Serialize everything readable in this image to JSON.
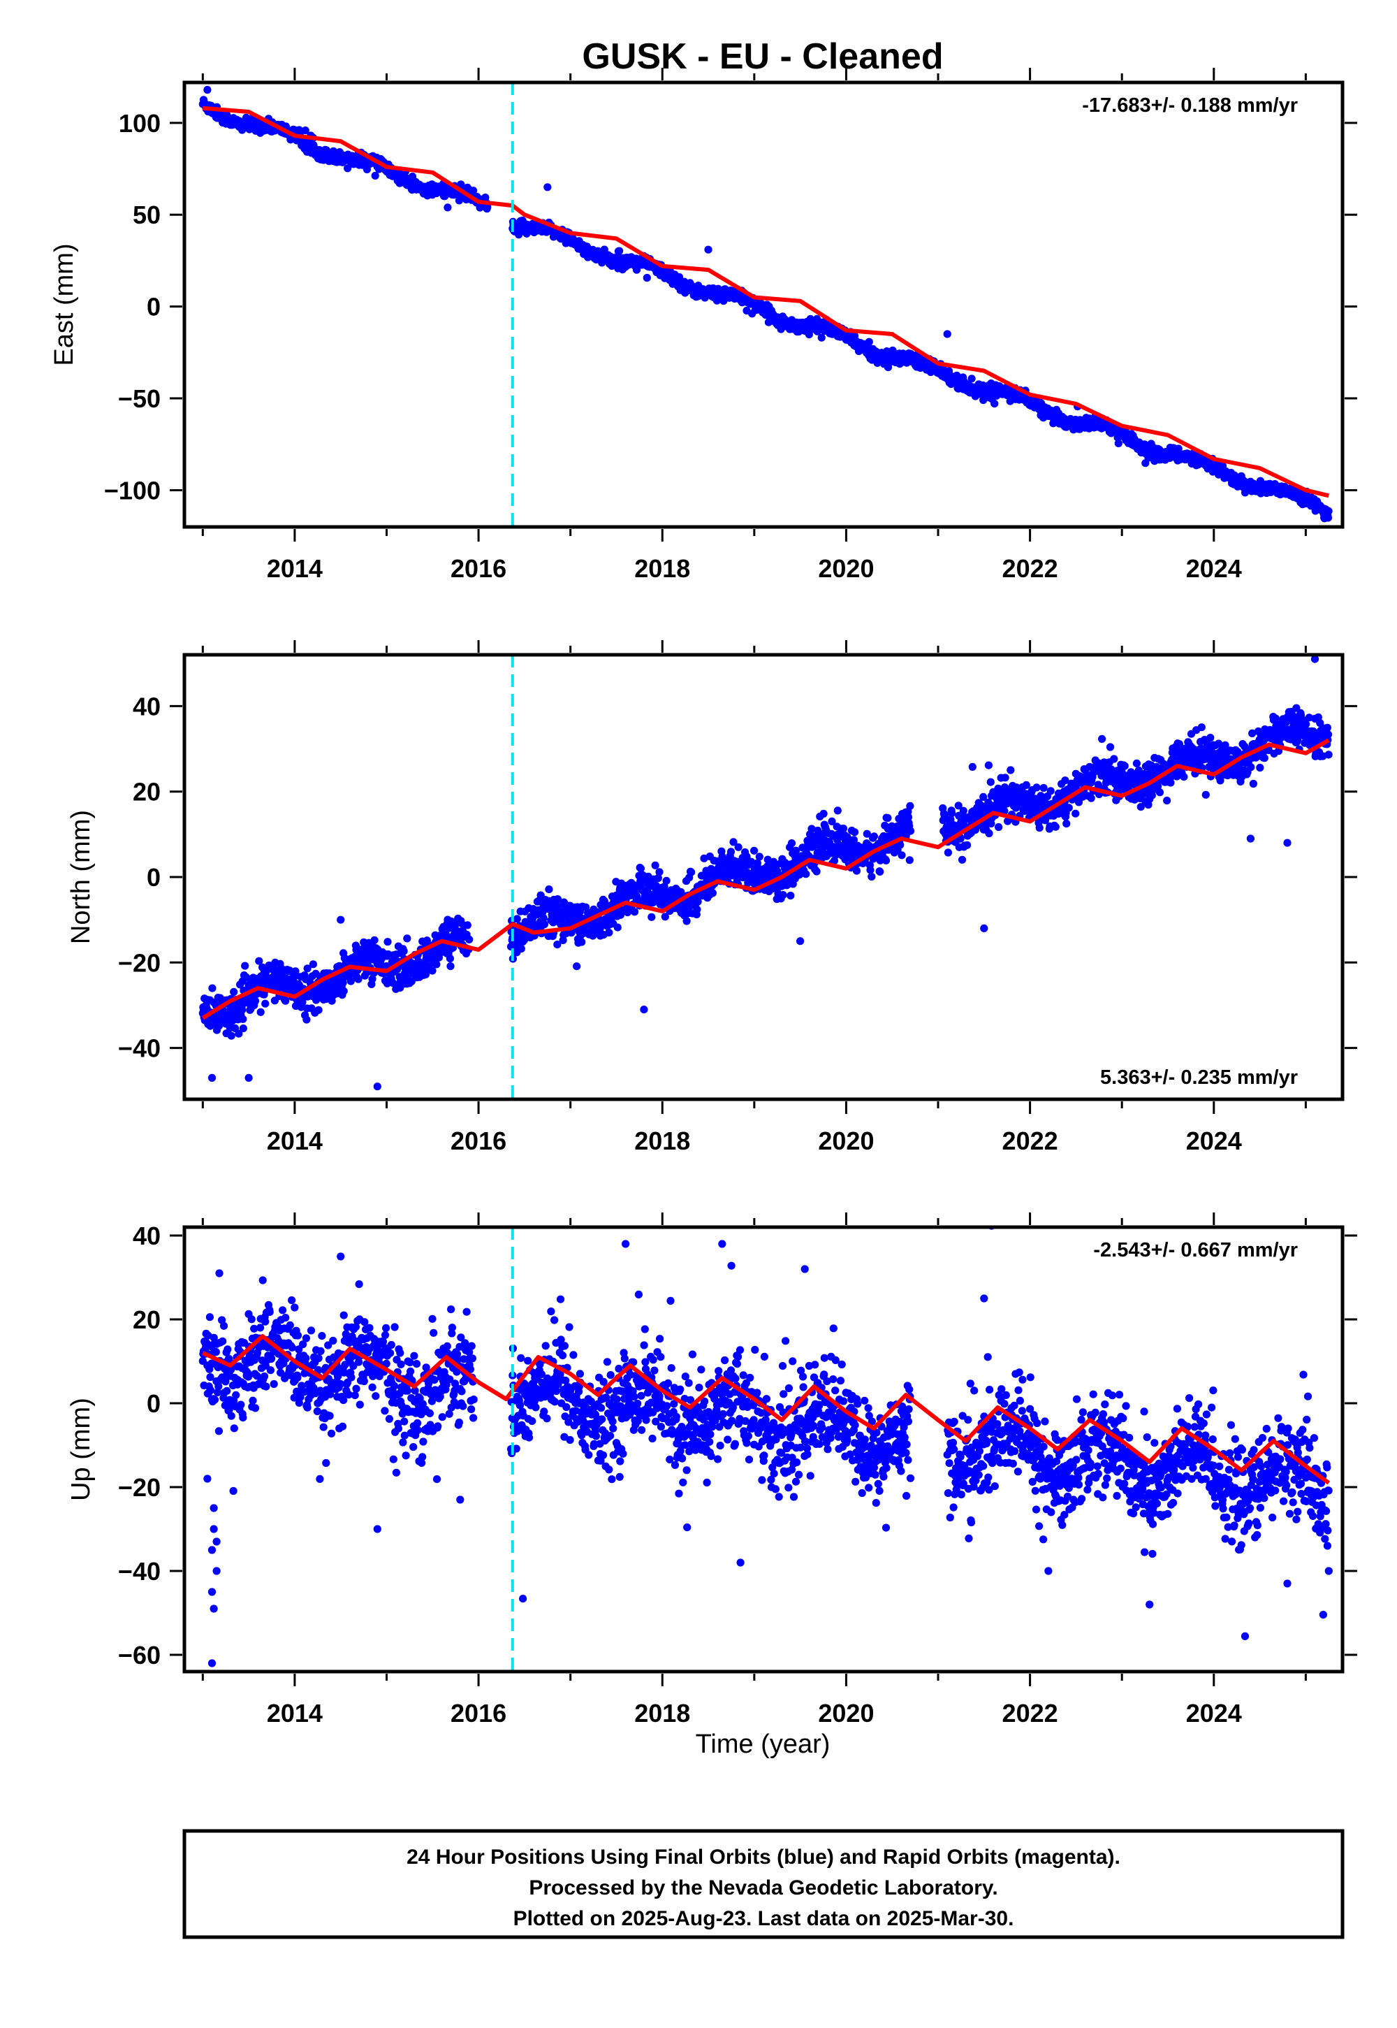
{
  "title": "GUSK  - EU - Cleaned",
  "xlabel": "Time (year)",
  "footer": {
    "line1": "24 Hour Positions Using Final Orbits (blue) and Rapid Orbits (magenta).",
    "line2": "Processed by the Nevada Geodetic Laboratory.",
    "line3": "Plotted on 2025-Aug-23. Last data on 2025-Mar-30."
  },
  "colors": {
    "points": "#0000ff",
    "model": "#ff0000",
    "event_line": "#00e5ee",
    "frame": "#000000"
  },
  "chart_data": [
    {
      "type": "scatter",
      "ylabel": "East (mm)",
      "rate_label": "-17.683+/- 0.188 mm/yr",
      "rate_position": "top-right",
      "xlim": [
        2012.8,
        2025.4
      ],
      "ylim": [
        -120,
        122
      ],
      "xticks": [
        2014,
        2016,
        2018,
        2020,
        2022,
        2024
      ],
      "xtick_labels": [
        "2014",
        "2016",
        "2018",
        "2020",
        "2022",
        "2024"
      ],
      "yticks": [
        100,
        50,
        0,
        -50,
        -100
      ],
      "ytick_labels": [
        "100",
        "50",
        "0",
        "−50",
        "−100"
      ],
      "event_line_x": 2016.37,
      "series": [
        {
          "role": "daily_positions",
          "model": {
            "offset": 109,
            "rate": -17.68,
            "t0": 2013.0,
            "seasonal_amp": 2.8,
            "seasonal_phase": 0.6,
            "noise": 1.6
          },
          "outliers": [
            [
              2016.75,
              65
            ],
            [
              2013.05,
              118
            ],
            [
              2021.1,
              -15
            ],
            [
              2025.2,
              -115
            ],
            [
              2018.5,
              31
            ]
          ]
        },
        {
          "role": "model_fit",
          "x": [
            2013.0,
            2013.5,
            2014.0,
            2014.5,
            2015.0,
            2015.5,
            2016.0,
            2016.37,
            2016.5,
            2017.0,
            2017.5,
            2018.0,
            2018.5,
            2019.0,
            2019.5,
            2020.0,
            2020.5,
            2021.0,
            2021.5,
            2022.0,
            2022.5,
            2023.0,
            2023.5,
            2024.0,
            2024.5,
            2025.0,
            2025.25
          ],
          "y": [
            108,
            106,
            93,
            90,
            76,
            73,
            57,
            55,
            50,
            40,
            37,
            22,
            20,
            5,
            3,
            -13,
            -15,
            -31,
            -35,
            -48,
            -53,
            -65,
            -70,
            -83,
            -88,
            -100,
            -103
          ]
        }
      ]
    },
    {
      "type": "scatter",
      "ylabel": "North (mm)",
      "rate_label": "5.363+/- 0.235 mm/yr",
      "rate_position": "bottom-right",
      "xlim": [
        2012.8,
        2025.4
      ],
      "ylim": [
        -52,
        52
      ],
      "xticks": [
        2014,
        2016,
        2018,
        2020,
        2022,
        2024
      ],
      "xtick_labels": [
        "2014",
        "2016",
        "2018",
        "2020",
        "2022",
        "2024"
      ],
      "yticks": [
        40,
        20,
        0,
        -20,
        -40
      ],
      "ytick_labels": [
        "40",
        "20",
        "0",
        "−20",
        "−40"
      ],
      "event_line_x": 2016.37,
      "series": [
        {
          "role": "daily_positions",
          "model": {
            "offset": -31,
            "rate": 5.36,
            "t0": 2013.0,
            "seasonal_amp": 2.6,
            "seasonal_phase": 0.5,
            "noise": 2.2
          },
          "outliers": [
            [
              2013.1,
              -47
            ],
            [
              2013.5,
              -47
            ],
            [
              2014.9,
              -49
            ],
            [
              2017.8,
              -31
            ],
            [
              2014.5,
              -10
            ],
            [
              2021.5,
              -12
            ],
            [
              2025.1,
              51
            ],
            [
              2024.8,
              8
            ],
            [
              2024.4,
              9
            ],
            [
              2019.5,
              -15
            ]
          ]
        },
        {
          "role": "model_fit",
          "x": [
            2013.0,
            2013.3,
            2013.6,
            2014.0,
            2014.3,
            2014.6,
            2015.0,
            2015.3,
            2015.6,
            2016.0,
            2016.37,
            2016.6,
            2017.0,
            2017.3,
            2017.6,
            2018.0,
            2018.3,
            2018.6,
            2019.0,
            2019.3,
            2019.6,
            2020.0,
            2020.3,
            2020.6,
            2021.0,
            2021.3,
            2021.6,
            2022.0,
            2022.3,
            2022.6,
            2023.0,
            2023.3,
            2023.6,
            2024.0,
            2024.3,
            2024.6,
            2025.0,
            2025.25
          ],
          "y": [
            -33,
            -29,
            -26,
            -28,
            -24,
            -21,
            -22,
            -18,
            -15,
            -17,
            -11,
            -13,
            -12,
            -9,
            -6,
            -8,
            -4,
            -1,
            -3,
            0,
            4,
            2,
            6,
            9,
            7,
            11,
            15,
            13,
            17,
            21,
            19,
            22,
            26,
            24,
            28,
            31,
            29,
            32
          ]
        }
      ]
    },
    {
      "type": "scatter",
      "ylabel": "Up (mm)",
      "rate_label": "-2.543+/- 0.667 mm/yr",
      "rate_position": "top-right",
      "xlim": [
        2012.8,
        2025.4
      ],
      "ylim": [
        -64,
        42
      ],
      "xticks": [
        2014,
        2016,
        2018,
        2020,
        2022,
        2024
      ],
      "xtick_labels": [
        "2014",
        "2016",
        "2018",
        "2020",
        "2022",
        "2024"
      ],
      "yticks": [
        40,
        20,
        0,
        -20,
        -40,
        -60
      ],
      "ytick_labels": [
        "40",
        "20",
        "0",
        "−20",
        "−40",
        "−60"
      ],
      "event_line_x": 2016.37,
      "series": [
        {
          "role": "daily_positions",
          "model": {
            "offset": 11,
            "rate": -2.54,
            "t0": 2013.0,
            "seasonal_amp": 5.5,
            "seasonal_phase": 0.55,
            "noise": 5.5
          },
          "outliers": [
            [
              2013.1,
              -62
            ],
            [
              2013.12,
              -49
            ],
            [
              2013.1,
              -45
            ],
            [
              2013.15,
              -40
            ],
            [
              2013.1,
              -35
            ],
            [
              2013.12,
              -30
            ],
            [
              2013.15,
              -33
            ],
            [
              2013.12,
              -25
            ],
            [
              2013.05,
              -18
            ],
            [
              2013.18,
              31
            ],
            [
              2014.5,
              35
            ],
            [
              2017.6,
              38
            ],
            [
              2018.65,
              38
            ],
            [
              2019.55,
              32
            ],
            [
              2021.5,
              25
            ],
            [
              2018.85,
              -38
            ],
            [
              2023.3,
              -48
            ],
            [
              2024.8,
              -43
            ],
            [
              2025.25,
              -40
            ],
            [
              2022.2,
              -40
            ],
            [
              2014.9,
              -30
            ],
            [
              2015.8,
              -23
            ]
          ]
        },
        {
          "role": "model_fit",
          "x": [
            2013.0,
            2013.3,
            2013.65,
            2014.0,
            2014.3,
            2014.6,
            2015.0,
            2015.3,
            2015.65,
            2016.0,
            2016.3,
            2016.65,
            2017.0,
            2017.3,
            2017.65,
            2018.0,
            2018.3,
            2018.65,
            2019.0,
            2019.3,
            2019.65,
            2020.0,
            2020.3,
            2020.65,
            2021.0,
            2021.3,
            2021.65,
            2022.0,
            2022.3,
            2022.65,
            2023.0,
            2023.3,
            2023.65,
            2024.0,
            2024.3,
            2024.65,
            2025.0,
            2025.25
          ],
          "y": [
            12,
            9,
            16,
            10,
            6,
            13,
            8,
            4,
            11,
            5,
            1,
            11,
            7,
            2,
            9,
            3,
            -1,
            6,
            1,
            -4,
            4,
            -2,
            -6,
            2,
            -4,
            -9,
            -1,
            -6,
            -11,
            -4,
            -9,
            -14,
            -6,
            -11,
            -16,
            -9,
            -15,
            -19
          ]
        }
      ]
    }
  ]
}
